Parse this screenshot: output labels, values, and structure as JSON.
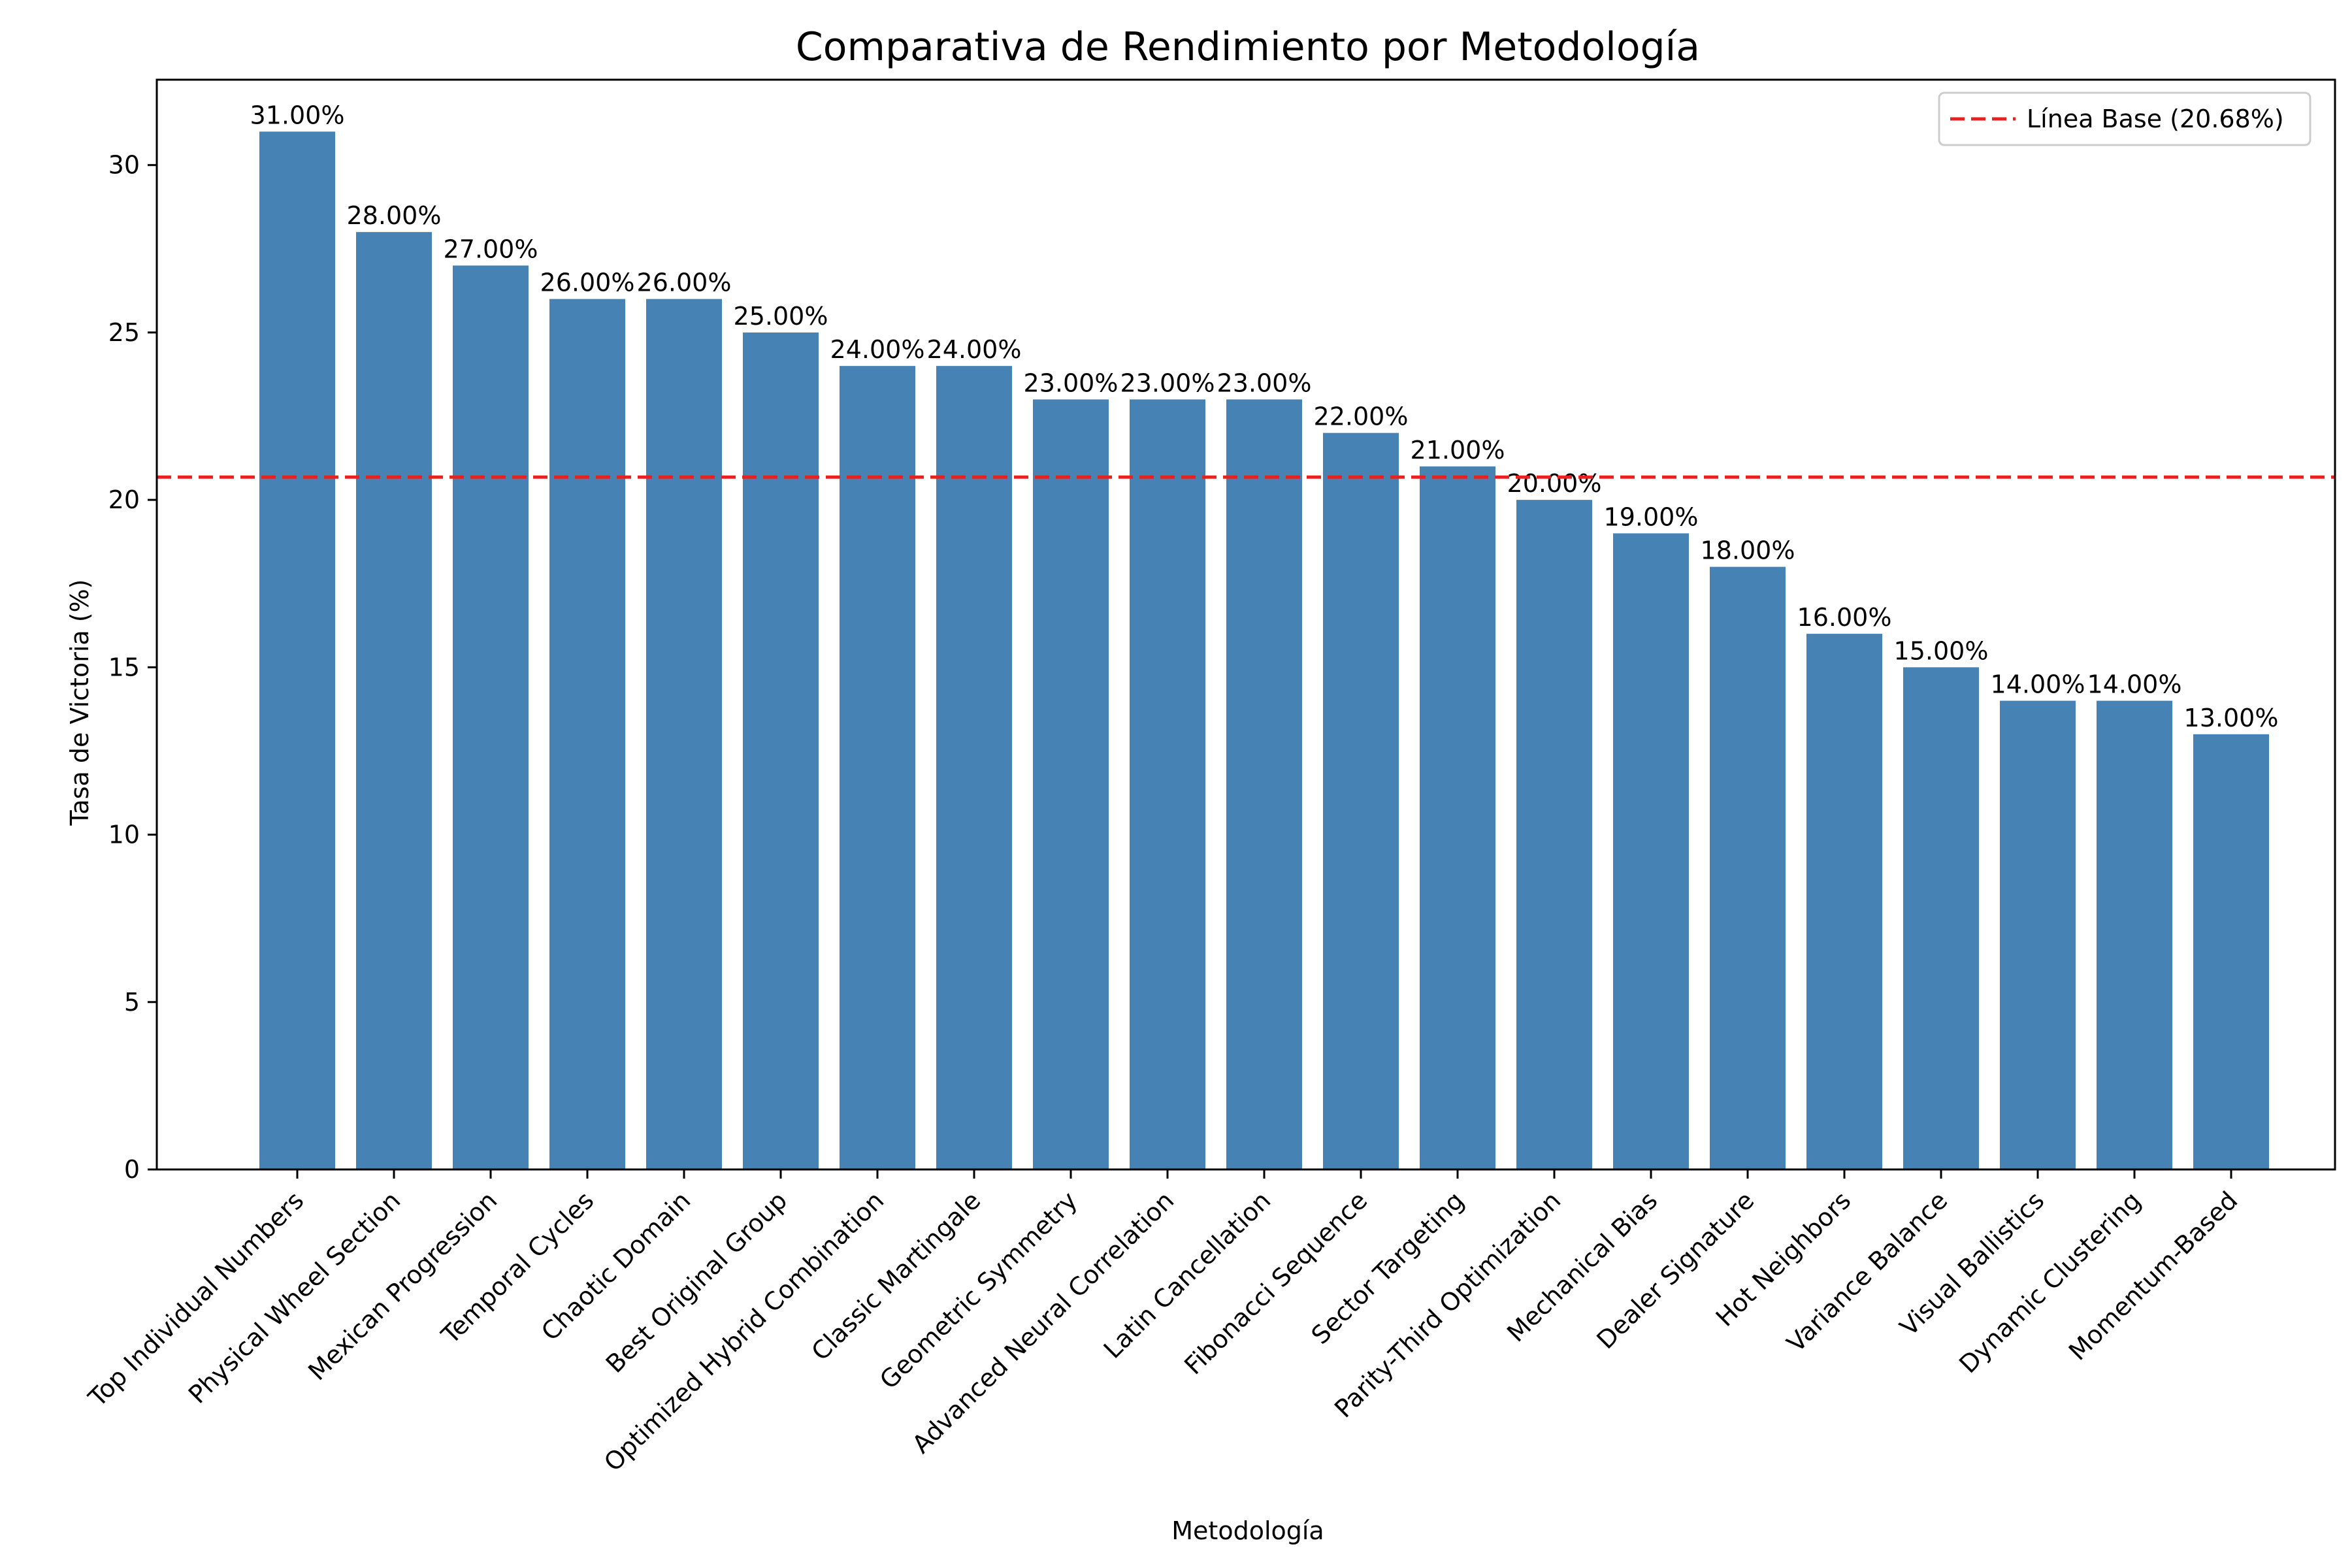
{
  "chart_data": {
    "type": "bar",
    "title": "Comparativa de Rendimiento por Metodología",
    "xlabel": "Metodología",
    "ylabel": "Tasa de Victoria (%)",
    "ylim": [
      0,
      32.55
    ],
    "yticks": [
      0,
      5,
      10,
      15,
      20,
      25,
      30
    ],
    "categories": [
      "Top Individual Numbers",
      "Physical Wheel Section",
      "Mexican Progression",
      "Temporal Cycles",
      "Chaotic Domain",
      "Best Original Group",
      "Optimized Hybrid Combination",
      "Classic Martingale",
      "Geometric Symmetry",
      "Advanced Neural Correlation",
      "Latin Cancellation",
      "Fibonacci Sequence",
      "Sector Targeting",
      "Parity-Third Optimization",
      "Mechanical Bias",
      "Dealer Signature",
      "Hot Neighbors",
      "Variance Balance",
      "Visual Ballistics",
      "Dynamic Clustering",
      "Momentum-Based"
    ],
    "values": [
      31,
      28,
      27,
      26,
      26,
      25,
      24,
      24,
      23,
      23,
      23,
      22,
      21,
      20,
      19,
      18,
      16,
      15,
      14,
      14,
      13
    ],
    "data_labels": [
      "31.00%",
      "28.00%",
      "27.00%",
      "26.00%",
      "26.00%",
      "25.00%",
      "24.00%",
      "24.00%",
      "23.00%",
      "23.00%",
      "23.00%",
      "22.00%",
      "21.00%",
      "20.00%",
      "19.00%",
      "18.00%",
      "16.00%",
      "15.00%",
      "14.00%",
      "14.00%",
      "13.00%"
    ],
    "baseline": {
      "value": 20.68,
      "label": "Línea Base (20.68%)",
      "color": "#e8201f",
      "style": "dashed"
    },
    "bar_color": "#4682b4",
    "grid": false,
    "legend_position": "top-right"
  }
}
